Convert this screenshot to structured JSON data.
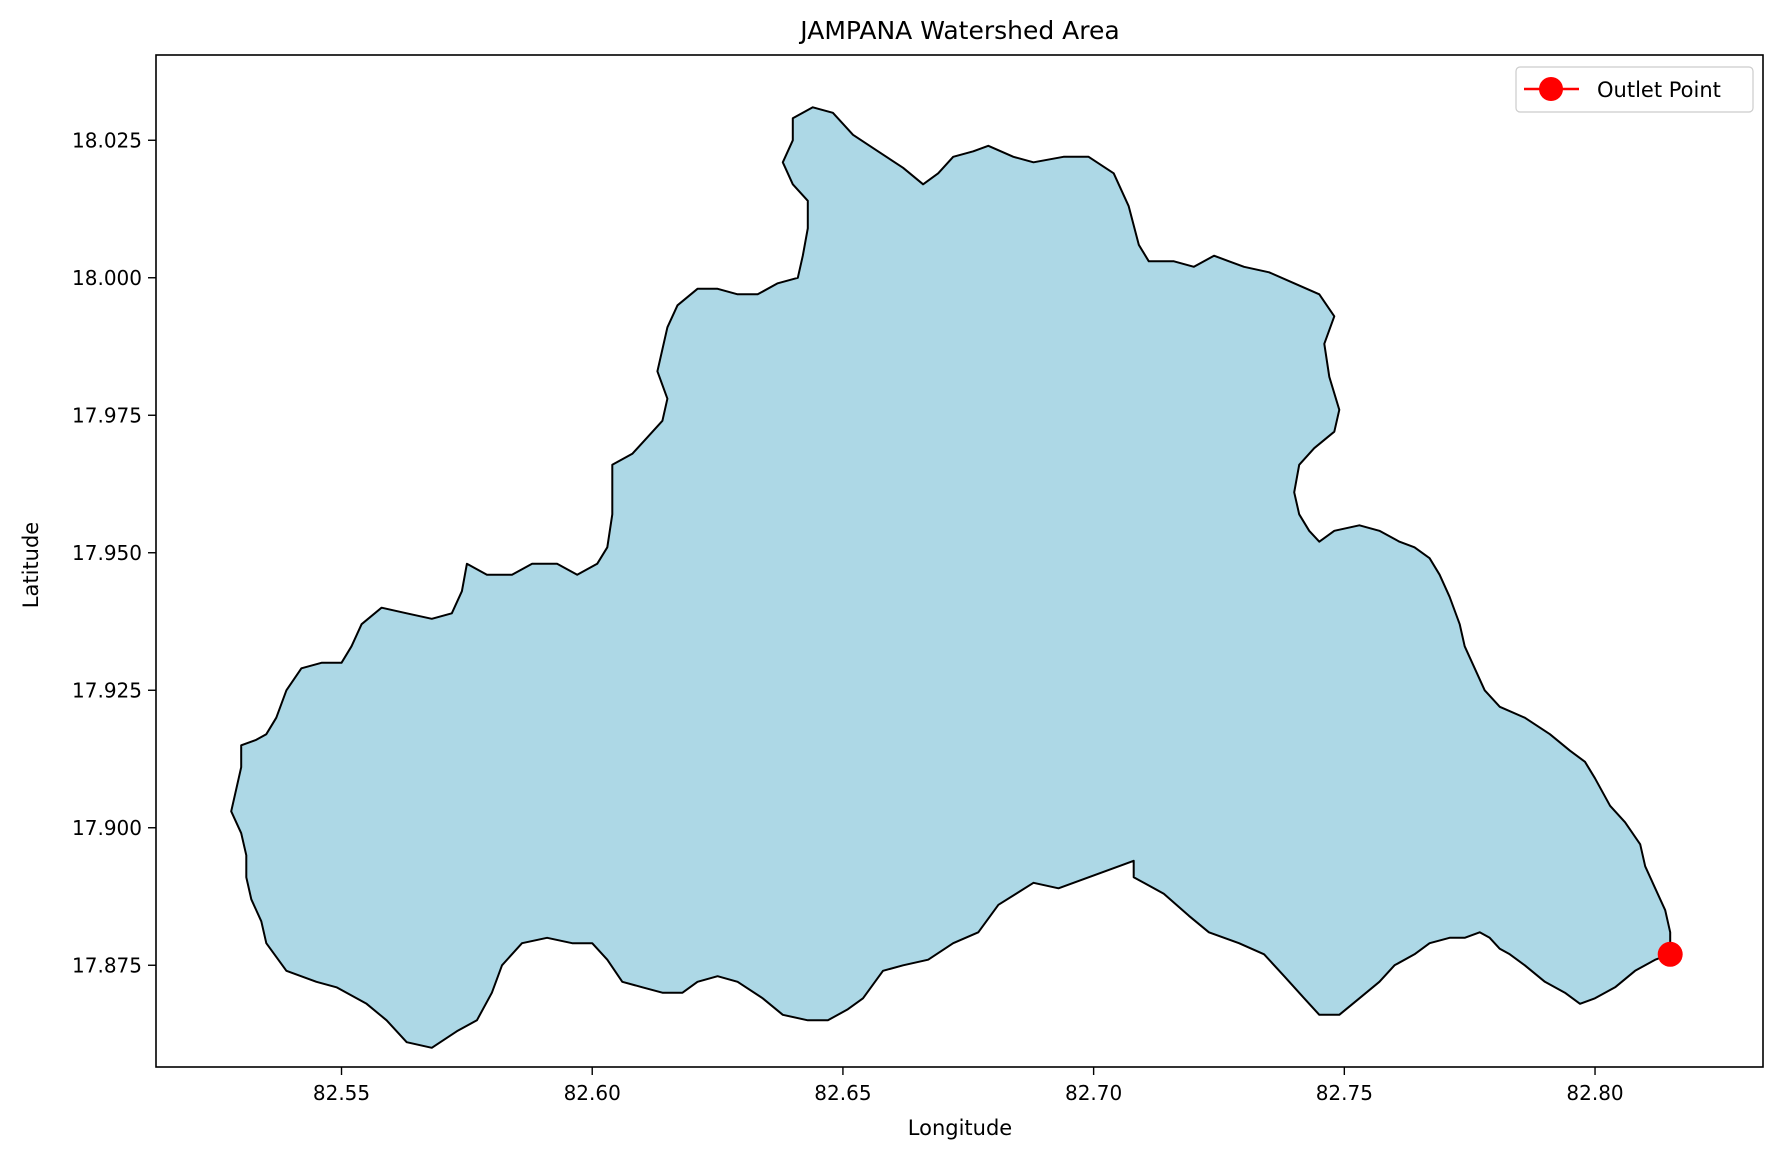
{
  "chart_data": {
    "type": "map",
    "title": "JAMPANA Watershed Area",
    "xlabel": "Longitude",
    "ylabel": "Latitude",
    "xlim": [
      82.513,
      82.8335
    ],
    "ylim": [
      17.8565,
      18.0405
    ],
    "xticks": [
      82.55,
      82.6,
      82.65,
      82.7,
      82.75,
      82.8
    ],
    "xtick_labels": [
      "82.55",
      "82.60",
      "82.65",
      "82.70",
      "82.75",
      "82.80"
    ],
    "yticks": [
      17.875,
      17.9,
      17.925,
      17.95,
      17.975,
      18.0,
      18.025
    ],
    "ytick_labels": [
      "17.875",
      "17.900",
      "17.925",
      "17.950",
      "17.975",
      "18.000",
      "18.025"
    ],
    "grid": false,
    "legend": {
      "position": "top-right",
      "entries": [
        "Outlet Point"
      ]
    },
    "watershed": {
      "fill": "#add8e6",
      "edge": "#000000",
      "boundary": [
        [
          82.644,
          18.031
        ],
        [
          82.648,
          18.03
        ],
        [
          82.652,
          18.026
        ],
        [
          82.657,
          18.023
        ],
        [
          82.662,
          18.02
        ],
        [
          82.666,
          18.017
        ],
        [
          82.669,
          18.019
        ],
        [
          82.672,
          18.022
        ],
        [
          82.676,
          18.023
        ],
        [
          82.679,
          18.024
        ],
        [
          82.684,
          18.022
        ],
        [
          82.688,
          18.021
        ],
        [
          82.694,
          18.022
        ],
        [
          82.699,
          18.022
        ],
        [
          82.704,
          18.019
        ],
        [
          82.707,
          18.013
        ],
        [
          82.709,
          18.006
        ],
        [
          82.711,
          18.003
        ],
        [
          82.716,
          18.003
        ],
        [
          82.72,
          18.002
        ],
        [
          82.724,
          18.004
        ],
        [
          82.727,
          18.003
        ],
        [
          82.73,
          18.002
        ],
        [
          82.735,
          18.001
        ],
        [
          82.74,
          17.999
        ],
        [
          82.745,
          17.997
        ],
        [
          82.748,
          17.993
        ],
        [
          82.746,
          17.988
        ],
        [
          82.747,
          17.982
        ],
        [
          82.749,
          17.976
        ],
        [
          82.748,
          17.972
        ],
        [
          82.744,
          17.969
        ],
        [
          82.741,
          17.966
        ],
        [
          82.74,
          17.961
        ],
        [
          82.741,
          17.957
        ],
        [
          82.743,
          17.954
        ],
        [
          82.745,
          17.952
        ],
        [
          82.748,
          17.954
        ],
        [
          82.753,
          17.955
        ],
        [
          82.757,
          17.954
        ],
        [
          82.761,
          17.952
        ],
        [
          82.764,
          17.951
        ],
        [
          82.767,
          17.949
        ],
        [
          82.769,
          17.946
        ],
        [
          82.771,
          17.942
        ],
        [
          82.773,
          17.937
        ],
        [
          82.774,
          17.933
        ],
        [
          82.776,
          17.929
        ],
        [
          82.778,
          17.925
        ],
        [
          82.781,
          17.922
        ],
        [
          82.786,
          17.92
        ],
        [
          82.791,
          17.917
        ],
        [
          82.795,
          17.914
        ],
        [
          82.798,
          17.912
        ],
        [
          82.8,
          17.909
        ],
        [
          82.803,
          17.904
        ],
        [
          82.806,
          17.901
        ],
        [
          82.809,
          17.897
        ],
        [
          82.81,
          17.893
        ],
        [
          82.812,
          17.889
        ],
        [
          82.814,
          17.885
        ],
        [
          82.815,
          17.881
        ],
        [
          82.815,
          17.877
        ],
        [
          82.812,
          17.876
        ],
        [
          82.808,
          17.874
        ],
        [
          82.804,
          17.871
        ],
        [
          82.8,
          17.869
        ],
        [
          82.797,
          17.868
        ],
        [
          82.794,
          17.87
        ],
        [
          82.79,
          17.872
        ],
        [
          82.786,
          17.875
        ],
        [
          82.783,
          17.877
        ],
        [
          82.781,
          17.878
        ],
        [
          82.779,
          17.88
        ],
        [
          82.777,
          17.881
        ],
        [
          82.774,
          17.88
        ],
        [
          82.771,
          17.88
        ],
        [
          82.767,
          17.879
        ],
        [
          82.764,
          17.877
        ],
        [
          82.76,
          17.875
        ],
        [
          82.757,
          17.872
        ],
        [
          82.753,
          17.869
        ],
        [
          82.749,
          17.866
        ],
        [
          82.745,
          17.866
        ],
        [
          82.742,
          17.869
        ],
        [
          82.738,
          17.873
        ],
        [
          82.734,
          17.877
        ],
        [
          82.729,
          17.879
        ],
        [
          82.723,
          17.881
        ],
        [
          82.719,
          17.884
        ],
        [
          82.714,
          17.888
        ],
        [
          82.71,
          17.89
        ],
        [
          82.708,
          17.891
        ],
        [
          82.708,
          17.894
        ],
        [
          82.705,
          17.893
        ],
        [
          82.699,
          17.891
        ],
        [
          82.693,
          17.889
        ],
        [
          82.688,
          17.89
        ],
        [
          82.681,
          17.886
        ],
        [
          82.677,
          17.881
        ],
        [
          82.672,
          17.879
        ],
        [
          82.667,
          17.876
        ],
        [
          82.662,
          17.875
        ],
        [
          82.658,
          17.874
        ],
        [
          82.654,
          17.869
        ],
        [
          82.651,
          17.867
        ],
        [
          82.647,
          17.865
        ],
        [
          82.643,
          17.865
        ],
        [
          82.638,
          17.866
        ],
        [
          82.634,
          17.869
        ],
        [
          82.629,
          17.872
        ],
        [
          82.625,
          17.873
        ],
        [
          82.621,
          17.872
        ],
        [
          82.618,
          17.87
        ],
        [
          82.614,
          17.87
        ],
        [
          82.61,
          17.871
        ],
        [
          82.606,
          17.872
        ],
        [
          82.603,
          17.876
        ],
        [
          82.6,
          17.879
        ],
        [
          82.596,
          17.879
        ],
        [
          82.591,
          17.88
        ],
        [
          82.586,
          17.879
        ],
        [
          82.582,
          17.875
        ],
        [
          82.58,
          17.87
        ],
        [
          82.577,
          17.865
        ],
        [
          82.573,
          17.863
        ],
        [
          82.568,
          17.86
        ],
        [
          82.563,
          17.861
        ],
        [
          82.559,
          17.865
        ],
        [
          82.555,
          17.868
        ],
        [
          82.549,
          17.871
        ],
        [
          82.545,
          17.872
        ],
        [
          82.539,
          17.874
        ],
        [
          82.535,
          17.879
        ],
        [
          82.534,
          17.883
        ],
        [
          82.532,
          17.887
        ],
        [
          82.531,
          17.891
        ],
        [
          82.531,
          17.895
        ],
        [
          82.53,
          17.899
        ],
        [
          82.528,
          17.903
        ],
        [
          82.529,
          17.907
        ],
        [
          82.53,
          17.911
        ],
        [
          82.53,
          17.915
        ],
        [
          82.533,
          17.916
        ],
        [
          82.535,
          17.917
        ],
        [
          82.537,
          17.92
        ],
        [
          82.539,
          17.925
        ],
        [
          82.542,
          17.929
        ],
        [
          82.546,
          17.93
        ],
        [
          82.55,
          17.93
        ],
        [
          82.552,
          17.933
        ],
        [
          82.554,
          17.937
        ],
        [
          82.558,
          17.94
        ],
        [
          82.563,
          17.939
        ],
        [
          82.568,
          17.938
        ],
        [
          82.572,
          17.939
        ],
        [
          82.574,
          17.943
        ],
        [
          82.575,
          17.948
        ],
        [
          82.579,
          17.946
        ],
        [
          82.584,
          17.946
        ],
        [
          82.588,
          17.948
        ],
        [
          82.593,
          17.948
        ],
        [
          82.597,
          17.946
        ],
        [
          82.601,
          17.948
        ],
        [
          82.603,
          17.951
        ],
        [
          82.604,
          17.957
        ],
        [
          82.604,
          17.962
        ],
        [
          82.604,
          17.966
        ],
        [
          82.608,
          17.968
        ],
        [
          82.611,
          17.971
        ],
        [
          82.614,
          17.974
        ],
        [
          82.615,
          17.978
        ],
        [
          82.613,
          17.983
        ],
        [
          82.614,
          17.987
        ],
        [
          82.615,
          17.991
        ],
        [
          82.617,
          17.995
        ],
        [
          82.621,
          17.998
        ],
        [
          82.625,
          17.998
        ],
        [
          82.629,
          17.997
        ],
        [
          82.633,
          17.997
        ],
        [
          82.637,
          17.999
        ],
        [
          82.641,
          18.0
        ],
        [
          82.642,
          18.004
        ],
        [
          82.643,
          18.009
        ],
        [
          82.643,
          18.014
        ],
        [
          82.64,
          18.017
        ],
        [
          82.638,
          18.021
        ],
        [
          82.64,
          18.025
        ],
        [
          82.64,
          18.029
        ]
      ]
    },
    "outlet_point": {
      "name": "Outlet Point",
      "x": 82.815,
      "y": 17.877,
      "color": "#ff0000"
    }
  }
}
